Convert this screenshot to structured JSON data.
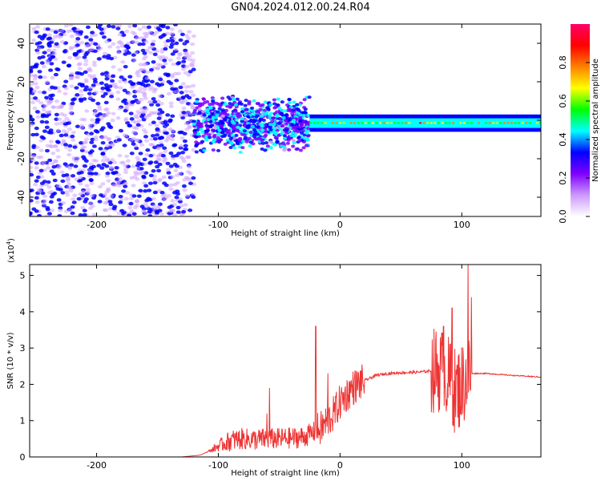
{
  "title": "GN04.2024.012.00.24.R04",
  "chart_data": [
    {
      "type": "heatmap",
      "xlabel": "Height of straight line (km)",
      "ylabel": "Frequency (Hz)",
      "xlim": [
        -255,
        165
      ],
      "ylim": [
        -50,
        50
      ],
      "xticks": [
        -200,
        -100,
        0,
        100
      ],
      "yticks": [
        -40,
        -20,
        0,
        20,
        40
      ],
      "colorbar": {
        "label": "Normalized spectral amplitude",
        "range": [
          0,
          1
        ],
        "ticks": [
          0.0,
          0.2,
          0.4,
          0.6,
          0.8
        ],
        "colors": [
          "#ffffff",
          "#cc99ff",
          "#7f00ff",
          "#0000ff",
          "#00ffff",
          "#00ff00",
          "#ffff00",
          "#ff8000",
          "#ff0000",
          "#ff0066"
        ]
      },
      "description_regions": [
        {
          "x_range": [
            -255,
            -120
          ],
          "freq_range": [
            -50,
            50
          ],
          "amplitude": 0.1
        },
        {
          "x_range": [
            -120,
            -25
          ],
          "freq_range": [
            -15,
            15
          ],
          "amplitude": 0.25
        },
        {
          "x_range": [
            -25,
            165
          ],
          "freq_range": [
            -3,
            0
          ],
          "amplitude": 0.6
        }
      ]
    },
    {
      "type": "line",
      "xlabel": "Height of straight line (km)",
      "ylabel": "SNR (10 * v/v)",
      "y_multiplier": "(x10^4)",
      "y_multiplier_base": "(x10",
      "y_multiplier_exp": "4",
      "y_multiplier_close": ")",
      "xlim": [
        -255,
        165
      ],
      "ylim": [
        0,
        5.3
      ],
      "xticks": [
        -200,
        -100,
        0,
        100
      ],
      "yticks": [
        0,
        1,
        2,
        3,
        4,
        5
      ],
      "color": "#ee3333",
      "series": [
        {
          "x": [
            -255,
            -130,
            -115,
            -105,
            -100,
            -90,
            -80,
            -70,
            -60,
            -50,
            -40,
            -30,
            -20,
            -15,
            -10,
            -5,
            0,
            10,
            20,
            30,
            40,
            50,
            60,
            70,
            80,
            85,
            90,
            95,
            100,
            105,
            108,
            120,
            140,
            165
          ],
          "y": [
            0.0,
            0.0,
            0.05,
            0.2,
            0.3,
            0.45,
            0.5,
            0.48,
            0.5,
            0.5,
            0.52,
            0.55,
            0.7,
            0.8,
            1.0,
            1.2,
            1.5,
            1.9,
            2.1,
            2.25,
            2.3,
            2.32,
            2.33,
            2.35,
            2.4,
            2.35,
            2.1,
            1.8,
            2.0,
            2.25,
            2.3,
            2.3,
            2.25,
            2.2
          ]
        }
      ],
      "spikes": [
        {
          "x": -60,
          "y": 1.2
        },
        {
          "x": -58,
          "y": 1.9
        },
        {
          "x": -20,
          "y": 3.6
        },
        {
          "x": -10,
          "y": 2.3
        },
        {
          "x": 85,
          "y": 3.6
        },
        {
          "x": 92,
          "y": 4.1
        },
        {
          "x": 105,
          "y": 5.3
        },
        {
          "x": 108,
          "y": 4.4
        }
      ]
    }
  ]
}
